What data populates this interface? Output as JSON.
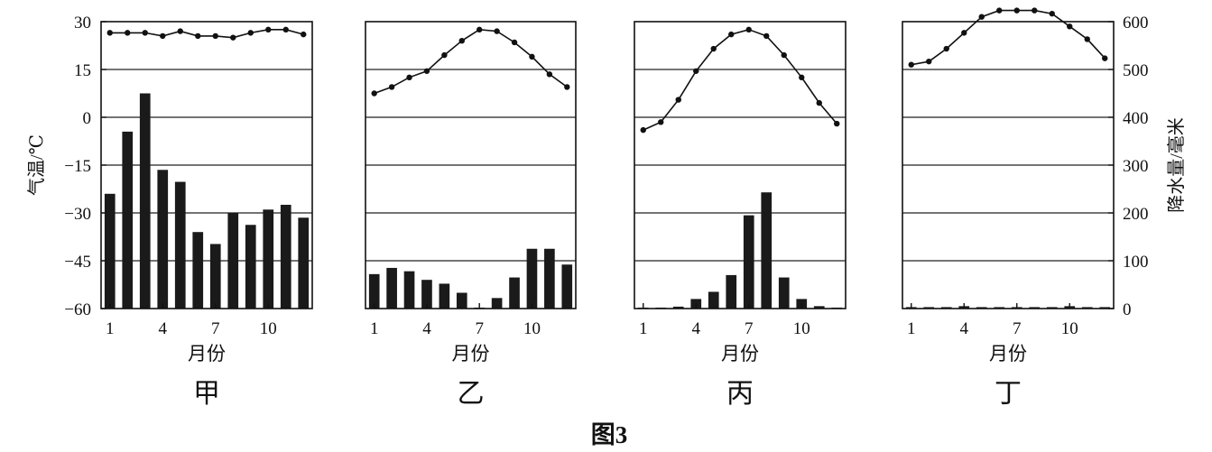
{
  "figure_caption": "图3",
  "left_axis_title": "气温/℃",
  "right_axis_title": "降水量/毫米",
  "colors": {
    "ink": "#111111",
    "bar": "#1a1a1a",
    "grid": "#222222",
    "background": "#ffffff"
  },
  "chart_data": [
    {
      "type": "bar+line",
      "panel": "甲",
      "xlabel": "月份",
      "months": [
        1,
        2,
        3,
        4,
        5,
        6,
        7,
        8,
        9,
        10,
        11,
        12
      ],
      "x_tick_labels": [
        "1",
        "4",
        "7",
        "10"
      ],
      "temperature_ylim": [
        -60,
        30
      ],
      "temperature_ticks": [
        30,
        15,
        0,
        -15,
        -30,
        -45,
        -60
      ],
      "precipitation_ylim": [
        0,
        600
      ],
      "precipitation_ticks": [
        600,
        500,
        400,
        300,
        200,
        100,
        0
      ],
      "temperature": [
        26.5,
        26.5,
        26.5,
        25.5,
        27,
        25.5,
        25.5,
        25,
        26.5,
        27.5,
        27.5,
        26
      ],
      "precipitation": [
        240,
        370,
        450,
        290,
        265,
        160,
        135,
        200,
        175,
        207,
        217,
        190
      ]
    },
    {
      "type": "bar+line",
      "panel": "乙",
      "xlabel": "月份",
      "months": [
        1,
        2,
        3,
        4,
        5,
        6,
        7,
        8,
        9,
        10,
        11,
        12
      ],
      "x_tick_labels": [
        "1",
        "4",
        "7",
        "10"
      ],
      "temperature_ylim": [
        -60,
        30
      ],
      "precipitation_ylim": [
        0,
        600
      ],
      "temperature": [
        7.5,
        9.5,
        12.5,
        14.5,
        19.5,
        24,
        27.5,
        27,
        23.5,
        19,
        13.5,
        9.5
      ],
      "precipitation": [
        72,
        85,
        78,
        60,
        52,
        33,
        2,
        22,
        65,
        125,
        125,
        92
      ]
    },
    {
      "type": "bar+line",
      "panel": "丙",
      "xlabel": "月份",
      "months": [
        1,
        2,
        3,
        4,
        5,
        6,
        7,
        8,
        9,
        10,
        11,
        12
      ],
      "x_tick_labels": [
        "1",
        "4",
        "7",
        "10"
      ],
      "temperature_ylim": [
        -60,
        30
      ],
      "precipitation_ylim": [
        0,
        600
      ],
      "temperature": [
        -4,
        -1.5,
        5.5,
        14.5,
        21.5,
        26,
        27.5,
        25.5,
        19.5,
        12.5,
        4.5,
        -2
      ],
      "precipitation": [
        2,
        2,
        4,
        20,
        35,
        70,
        195,
        243,
        65,
        20,
        5,
        2
      ]
    },
    {
      "type": "bar+line",
      "panel": "丁",
      "xlabel": "月份",
      "months": [
        1,
        2,
        3,
        4,
        5,
        6,
        7,
        8,
        9,
        10,
        11,
        12
      ],
      "x_tick_labels": [
        "1",
        "4",
        "7",
        "10"
      ],
      "temperature_ylim": [
        -60,
        30
      ],
      "precipitation_ylim": [
        0,
        600
      ],
      "temperature": [
        16.5,
        17.5,
        21.5,
        26.5,
        31.5,
        33.5,
        33.5,
        33.5,
        32.5,
        28.5,
        24.5,
        18.5
      ],
      "precipitation": [
        3,
        3,
        3,
        5,
        3,
        3,
        3,
        3,
        3,
        5,
        3,
        3
      ]
    }
  ]
}
